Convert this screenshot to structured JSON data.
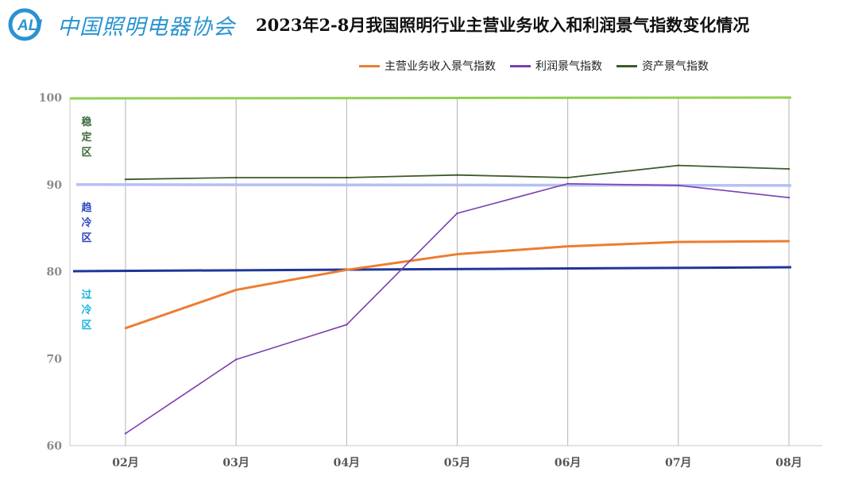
{
  "logo": {
    "mark_text": "ALI",
    "name": "中国照明电器协会",
    "color": "#2a93d0"
  },
  "title": "2023年2-8月我国照明行业主营业务收入和利润景气指数变化情况",
  "chart_data": {
    "type": "line",
    "categories": [
      "02月",
      "03月",
      "04月",
      "05月",
      "06月",
      "07月",
      "08月"
    ],
    "ylim": [
      60,
      100
    ],
    "yticks": [
      100,
      90,
      80,
      70,
      60
    ],
    "grid": "vertical lines at each category",
    "legend_position": "top-right",
    "series": [
      {
        "name": "主营业务收入景气指数",
        "color": "#ed7d31",
        "values": [
          73.5,
          77.9,
          80.2,
          82.0,
          82.9,
          83.4,
          83.5
        ]
      },
      {
        "name": "利润景气指数",
        "color": "#7a3fb0",
        "values": [
          61.4,
          69.9,
          73.9,
          86.7,
          90.1,
          89.9,
          88.5
        ]
      },
      {
        "name": "资产景气指数",
        "color": "#3d5a2a",
        "values": [
          90.6,
          90.8,
          90.8,
          91.1,
          90.8,
          92.2,
          91.8
        ]
      }
    ],
    "reference_lines": [
      {
        "value": 100,
        "color": "#92d050"
      },
      {
        "value": 90,
        "color": "#b4c0f4"
      },
      {
        "value": 80,
        "color": "#1f3699"
      }
    ],
    "zones": [
      {
        "label": [
          "稳",
          "定",
          "区"
        ],
        "color": "#3d6b3a"
      },
      {
        "label": [
          "趋",
          "冷",
          "区"
        ],
        "color": "#2b43c0"
      },
      {
        "label": [
          "过",
          "冷",
          "区"
        ],
        "color": "#19b4e0"
      }
    ]
  }
}
